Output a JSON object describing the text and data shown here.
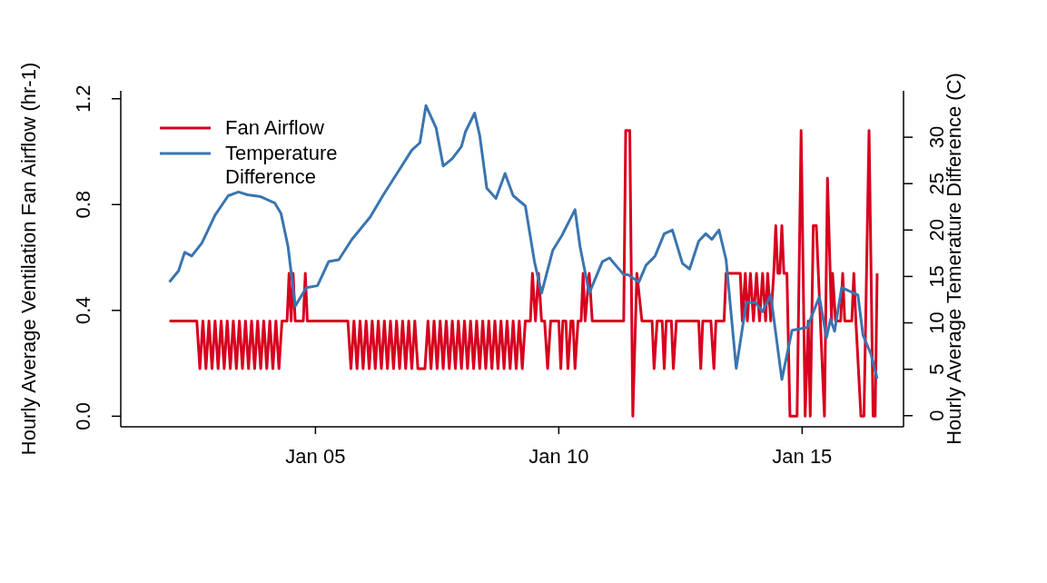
{
  "chart_data": {
    "type": "line",
    "ylabel": "Hourly Average Ventilation Fan Airflow (hr-1)",
    "y2label": "Hourly Average Temerature Difference (C)",
    "xlim": [
      "--01-01T00:00",
      "--01-17T02:00"
    ],
    "xticks": [
      {
        "value": "--01-05",
        "label": "Jan 05"
      },
      {
        "value": "--01-10",
        "label": "Jan 10"
      },
      {
        "value": "--01-15",
        "label": "Jan 15"
      }
    ],
    "ylim": [
      -0.04,
      1.23
    ],
    "yticks": [
      {
        "value": 0,
        "label": "0.0"
      },
      0.4,
      0.8,
      1.2
    ],
    "y2lim": [
      -1.2,
      35.0
    ],
    "y2ticks": [
      0,
      5,
      10,
      15,
      20,
      25,
      30
    ],
    "grid": false,
    "legend": "top left",
    "line_style": "solid",
    "marker": "none",
    "series": [
      {
        "name": "Fan Airflow",
        "color": "#d7001f",
        "x": [
          "--01-02T00:00",
          "--01-02T13:30",
          "--01-02T15:00",
          "--01-02T16:30",
          "--01-02T18:00",
          "--01-02T19:30",
          "--01-02T21:00",
          "--01-02T22:30",
          "--01-03T00:00",
          "--01-03T01:30",
          "--01-03T03:00",
          "--01-03T04:30",
          "--01-03T06:00",
          "--01-03T07:30",
          "--01-03T09:00",
          "--01-03T10:30",
          "--01-03T12:00",
          "--01-03T13:30",
          "--01-03T15:00",
          "--01-03T16:30",
          "--01-03T18:00",
          "--01-03T19:30",
          "--01-03T21:00",
          "--01-03T22:30",
          "--01-04T00:00",
          "--01-04T01:30",
          "--01-04T03:00",
          "--01-04T04:30",
          "--01-04T06:00",
          "--01-04T07:30",
          "--01-04T10:00",
          "--01-04T11:00",
          "--01-04T12:00",
          "--01-04T13:00",
          "--01-04T14:00",
          "--01-04T18:00",
          "--01-04T19:00",
          "--01-04T20:00",
          "--01-05T16:00",
          "--01-05T17:30",
          "--01-05T19:00",
          "--01-05T20:30",
          "--01-05T22:00",
          "--01-05T23:30",
          "--01-06T01:00",
          "--01-06T02:30",
          "--01-06T04:00",
          "--01-06T05:30",
          "--01-06T07:00",
          "--01-06T08:30",
          "--01-06T10:00",
          "--01-06T11:30",
          "--01-06T13:00",
          "--01-06T14:30",
          "--01-06T16:00",
          "--01-06T17:30",
          "--01-06T19:00",
          "--01-06T20:30",
          "--01-06T22:00",
          "--01-06T23:30",
          "--01-07T01:00",
          "--01-07T02:30",
          "--01-07T06:00",
          "--01-07T07:30",
          "--01-07T09:00",
          "--01-07T10:30",
          "--01-07T12:00",
          "--01-07T13:30",
          "--01-07T15:00",
          "--01-07T16:30",
          "--01-07T18:00",
          "--01-07T19:30",
          "--01-07T21:00",
          "--01-07T22:30",
          "--01-08T00:00",
          "--01-08T01:30",
          "--01-08T03:00",
          "--01-08T04:30",
          "--01-08T06:00",
          "--01-08T07:30",
          "--01-08T09:00",
          "--01-08T10:30",
          "--01-08T12:00",
          "--01-08T13:30",
          "--01-08T15:00",
          "--01-08T16:30",
          "--01-08T18:00",
          "--01-08T19:30",
          "--01-08T21:00",
          "--01-08T22:30",
          "--01-09T00:00",
          "--01-09T01:30",
          "--01-09T03:00",
          "--01-09T04:30",
          "--01-09T06:00",
          "--01-09T07:30",
          "--01-09T10:00",
          "--01-09T11:00",
          "--01-09T12:30",
          "--01-09T14:00",
          "--01-09T15:30",
          "--01-09T17:00",
          "--01-09T18:30",
          "--01-09T20:00",
          "--01-10T00:00",
          "--01-10T01:00",
          "--01-10T02:00",
          "--01-10T03:30",
          "--01-10T04:30",
          "--01-10T06:00",
          "--01-10T07:00",
          "--01-10T08:00",
          "--01-10T09:30",
          "--01-10T11:00",
          "--01-10T12:00",
          "--01-10T13:00",
          "--01-10T15:00",
          "--01-10T16:30",
          "--01-11T08:00",
          "--01-11T09:00",
          "--01-11T11:00",
          "--01-11T12:30",
          "--01-11T14:30",
          "--01-11T17:00",
          "--01-11T22:00",
          "--01-11T23:00",
          "--01-12T00:30",
          "--01-12T03:00",
          "--01-12T04:00",
          "--01-12T05:00",
          "--01-12T07:30",
          "--01-12T08:30",
          "--01-12T10:00",
          "--01-12T21:00",
          "--01-12T22:00",
          "--01-12T23:00",
          "--01-13T03:00",
          "--01-13T04:30",
          "--01-13T05:30",
          "--01-13T09:30",
          "--01-13T10:30",
          "--01-13T17:30",
          "--01-13T18:30",
          "--01-13T20:00",
          "--01-13T21:00",
          "--01-13T22:30",
          "--01-14T00:00",
          "--01-14T01:30",
          "--01-14T03:00",
          "--01-14T04:30",
          "--01-14T06:00",
          "--01-14T07:00",
          "--01-14T08:30",
          "--01-14T10:00",
          "--01-14T11:00",
          "--01-14T12:00",
          "--01-14T13:00",
          "--01-14T14:00",
          "--01-14T15:00",
          "--01-14T16:30",
          "--01-14T18:00",
          "--01-14T21:30",
          "--01-14T23:30",
          "--01-15T01:30",
          "--01-15T03:00",
          "--01-15T04:00",
          "--01-15T05:30",
          "--01-15T07:00",
          "--01-15T11:00",
          "--01-15T12:30",
          "--01-15T14:30",
          "--01-15T15:00",
          "--01-15T16:30",
          "--01-15T19:00",
          "--01-15T20:00",
          "--01-15T21:00",
          "--01-16T00:30",
          "--01-16T01:30",
          "--01-16T02:30",
          "--01-16T05:00",
          "--01-16T06:30",
          "--01-16T09:00",
          "--01-16T11:00",
          "--01-16T12:00",
          "--01-16T13:00"
        ],
        "values": [
          0.36,
          0.36,
          0.18,
          0.36,
          0.18,
          0.36,
          0.18,
          0.36,
          0.18,
          0.36,
          0.18,
          0.36,
          0.18,
          0.36,
          0.18,
          0.36,
          0.18,
          0.36,
          0.18,
          0.36,
          0.18,
          0.36,
          0.18,
          0.36,
          0.18,
          0.36,
          0.18,
          0.36,
          0.18,
          0.36,
          0.36,
          0.54,
          0.36,
          0.54,
          0.36,
          0.36,
          0.54,
          0.36,
          0.36,
          0.18,
          0.36,
          0.18,
          0.36,
          0.18,
          0.36,
          0.18,
          0.36,
          0.18,
          0.36,
          0.18,
          0.36,
          0.18,
          0.36,
          0.18,
          0.36,
          0.18,
          0.36,
          0.18,
          0.36,
          0.18,
          0.36,
          0.18,
          0.18,
          0.36,
          0.18,
          0.36,
          0.18,
          0.36,
          0.18,
          0.36,
          0.18,
          0.36,
          0.18,
          0.36,
          0.18,
          0.36,
          0.18,
          0.36,
          0.18,
          0.36,
          0.18,
          0.36,
          0.18,
          0.36,
          0.18,
          0.36,
          0.18,
          0.36,
          0.18,
          0.36,
          0.18,
          0.36,
          0.18,
          0.36,
          0.18,
          0.36,
          0.36,
          0.54,
          0.36,
          0.54,
          0.36,
          0.36,
          0.18,
          0.36,
          0.36,
          0.18,
          0.36,
          0.36,
          0.18,
          0.36,
          0.36,
          0.18,
          0.36,
          0.36,
          0.54,
          0.36,
          0.54,
          0.36,
          0.36,
          1.08,
          1.08,
          0,
          0.54,
          0.36,
          0.36,
          0.18,
          0.36,
          0.36,
          0.18,
          0.36,
          0.36,
          0.18,
          0.36,
          0.36,
          0.18,
          0.36,
          0.36,
          0.18,
          0.36,
          0.36,
          0.54,
          0.54,
          0.36,
          0.54,
          0.36,
          0.54,
          0.36,
          0.54,
          0.36,
          0.54,
          0.36,
          0.54,
          0.36,
          0.54,
          0.72,
          0.54,
          0.54,
          0.72,
          0.54,
          0.54,
          0,
          0,
          1.08,
          0,
          0.36,
          0,
          0.72,
          0.72,
          0,
          0.9,
          0.36,
          0.54,
          0.36,
          0.36,
          0.54,
          0.36,
          0.36,
          0.54,
          0.36,
          0,
          0,
          1.08,
          0,
          0,
          0.54
        ]
      },
      {
        "name": "Temperature Difference",
        "color": "#3a75b0",
        "axis": "y2",
        "x": [
          "--01-02T00:00",
          "--01-02T04:30",
          "--01-02T07:30",
          "--01-02T11:00",
          "--01-02T16:00",
          "--01-02T22:30",
          "--01-03T05:00",
          "--01-03T10:00",
          "--01-03T14:30",
          "--01-03T21:00",
          "--01-04T04:00",
          "--01-04T07:00",
          "--01-04T10:30",
          "--01-04T14:00",
          "--01-04T19:30",
          "--01-05T01:00",
          "--01-05T06:30",
          "--01-05T11:30",
          "--01-05T18:00",
          "--01-06T03:00",
          "--01-06T09:30",
          "--01-06T16:30",
          "--01-06T23:30",
          "--01-07T03:30",
          "--01-07T06:30",
          "--01-07T11:30",
          "--01-07T15:00",
          "--01-07T19:30",
          "--01-08T00:00",
          "--01-08T02:00",
          "--01-08T06:30",
          "--01-08T09:00",
          "--01-08T12:30",
          "--01-08T17:00",
          "--01-08T21:30",
          "--01-09T01:30",
          "--01-09T07:30",
          "--01-09T12:00",
          "--01-09T15:30",
          "--01-09T21:00",
          "--01-10T01:30",
          "--01-10T08:00",
          "--01-10T10:30",
          "--01-10T15:00",
          "--01-10T21:30",
          "--01-11T01:00",
          "--01-11T08:00",
          "--01-11T10:00",
          "--01-11T15:30",
          "--01-11T19:00",
          "--01-11T23:30",
          "--01-12T04:00",
          "--01-12T08:00",
          "--01-12T13:00",
          "--01-12T16:30",
          "--01-12T21:00",
          "--01-13T00:30",
          "--01-13T03:30",
          "--01-13T07:00",
          "--01-13T10:30",
          "--01-13T15:30",
          "--01-13T20:30",
          "--01-14T01:00",
          "--01-14T04:30",
          "--01-14T08:30",
          "--01-14T14:00",
          "--01-14T19:00",
          "--01-15T02:30",
          "--01-15T08:30",
          "--01-15T12:00",
          "--01-15T14:00",
          "--01-15T16:00",
          "--01-15T19:30",
          "--01-16T03:30",
          "--01-16T06:00",
          "--01-16T10:00",
          "--01-16T13:00"
        ],
        "values": [
          14.4,
          15.6,
          17.6,
          17.2,
          18.6,
          21.6,
          23.7,
          24.1,
          23.8,
          23.6,
          22.9,
          21.8,
          18.2,
          11.8,
          13.8,
          14.0,
          16.6,
          16.8,
          19.0,
          21.4,
          23.8,
          26.2,
          28.6,
          29.4,
          33.4,
          31.0,
          26.9,
          27.7,
          29.0,
          30.6,
          32.6,
          30.2,
          24.5,
          23.4,
          26.1,
          23.7,
          22.6,
          16.6,
          13.2,
          17.8,
          19.4,
          22.2,
          18.2,
          13.2,
          16.6,
          17.0,
          15.2,
          15.2,
          14.4,
          16.2,
          17.2,
          19.6,
          20.0,
          16.4,
          15.8,
          18.8,
          19.6,
          19.0,
          20.0,
          16.8,
          5.1,
          12.2,
          12.2,
          11.2,
          13.0,
          3.9,
          9.2,
          9.5,
          12.8,
          8.4,
          10.4,
          9.1,
          13.8,
          13.0,
          8.7,
          6.6,
          4.0
        ]
      }
    ]
  }
}
